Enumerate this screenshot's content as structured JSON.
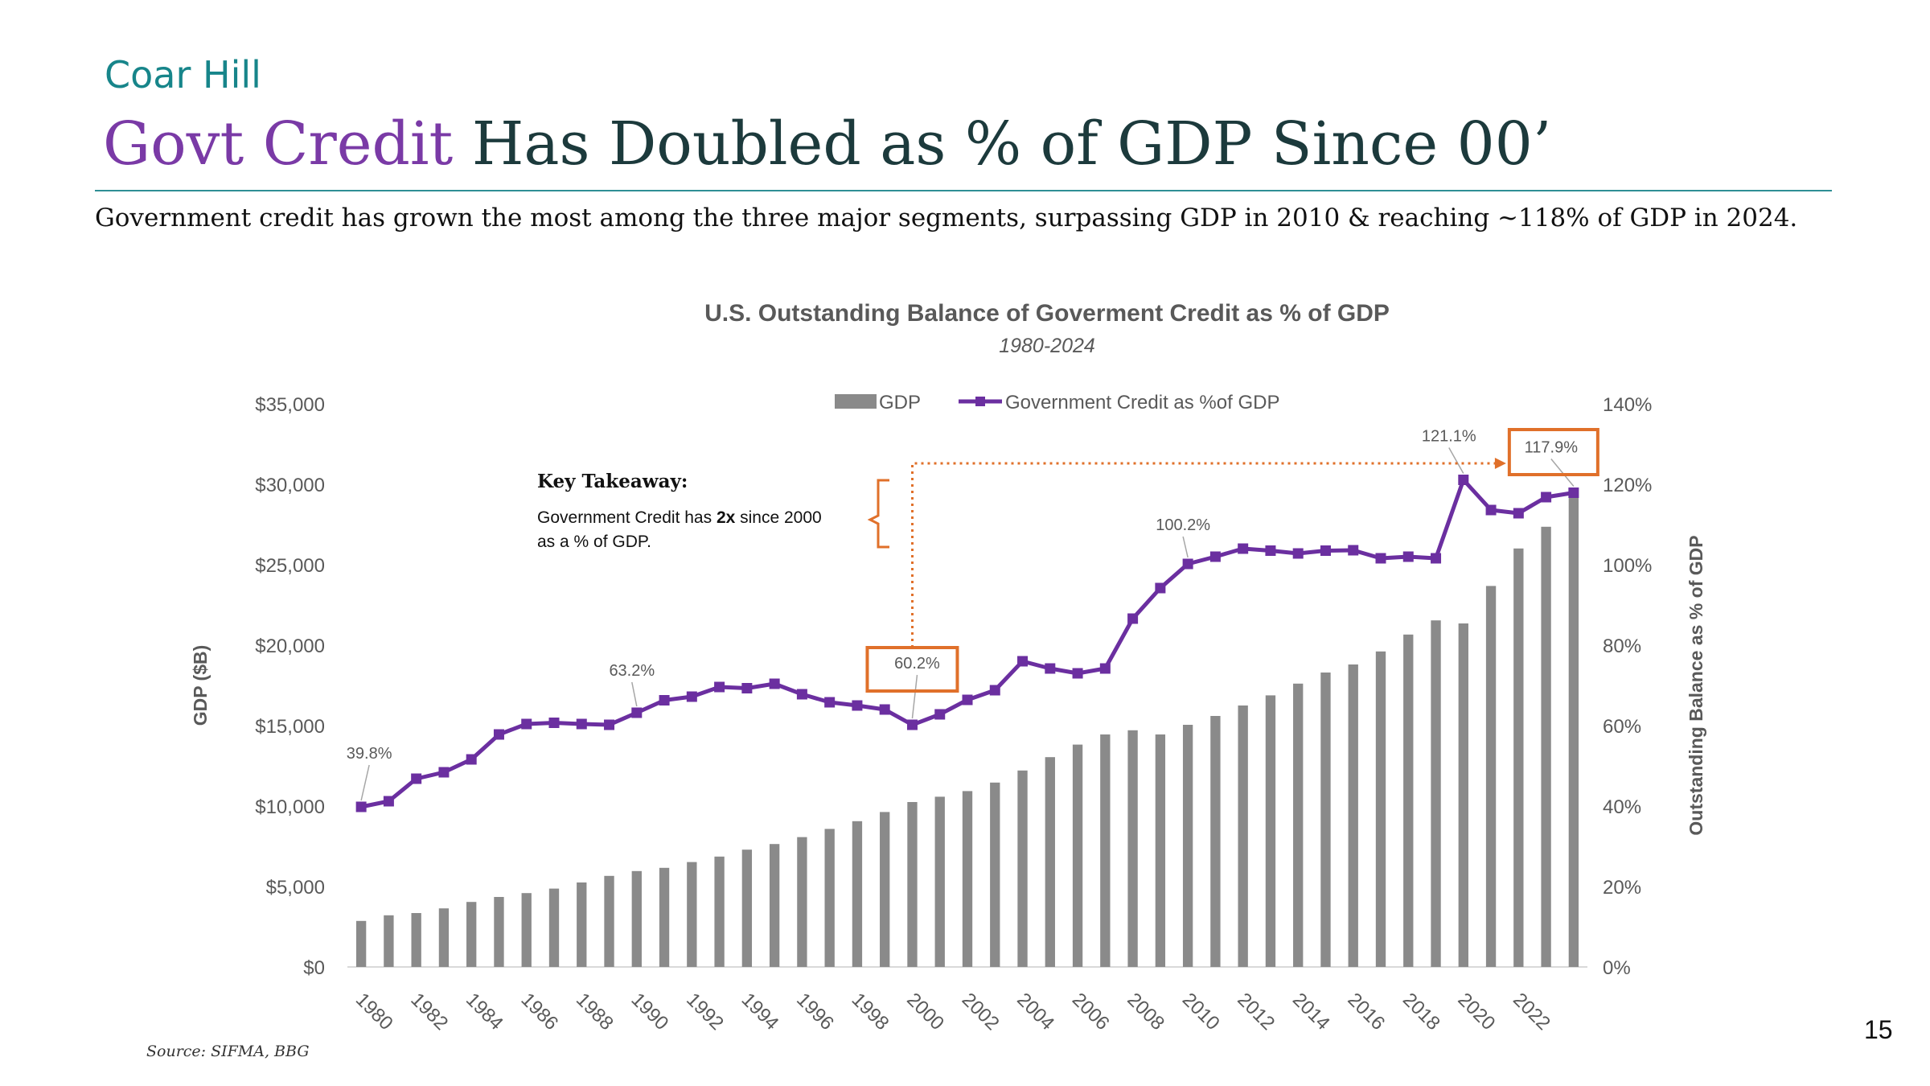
{
  "header": {
    "brand": "Coar Hill",
    "title_accent": "Govt Credit",
    "title_rest": " Has Doubled as % of GDP Since 00’",
    "subtitle": "Government credit has grown the most among the three major segments, surpassing GDP in 2010 & reaching ~118% of GDP in 2024."
  },
  "source": "Source: SIFMA, BBG",
  "page_number": "15",
  "annotation": {
    "heading": "Key Takeaway:",
    "line1_pre": "Government Credit has ",
    "line1_bold": "2x",
    "line1_post": " since 2000",
    "line2": "as a % of GDP."
  },
  "colors": {
    "bar": "#8a8a8a",
    "line": "#6b2fa0",
    "highlight": "#e0702a",
    "axis_text": "#595959"
  },
  "chart_data": {
    "type": "bar+line",
    "title": "U.S. Outstanding Balance of Goverment Credit as % of GDP",
    "subtitle": "1980-2024",
    "ylabel": "GDP ($B)",
    "y2label": "Outstanding Balance as % of GDP",
    "ylim": [
      0,
      35000
    ],
    "y2lim": [
      0,
      140
    ],
    "y_ticks": [
      "$0",
      "$5,000",
      "$10,000",
      "$15,000",
      "$20,000",
      "$25,000",
      "$30,000",
      "$35,000"
    ],
    "y2_ticks": [
      "0%",
      "20%",
      "40%",
      "60%",
      "80%",
      "100%",
      "120%",
      "140%"
    ],
    "legend_position": "top-center",
    "x": [
      1980,
      1981,
      1982,
      1983,
      1984,
      1985,
      1986,
      1987,
      1988,
      1989,
      1990,
      1991,
      1992,
      1993,
      1994,
      1995,
      1996,
      1997,
      1998,
      1999,
      2000,
      2001,
      2002,
      2003,
      2004,
      2005,
      2006,
      2007,
      2008,
      2009,
      2010,
      2011,
      2012,
      2013,
      2014,
      2015,
      2016,
      2017,
      2018,
      2019,
      2020,
      2021,
      2022,
      2023,
      2024
    ],
    "x_tick_labels": [
      "1980",
      "1982",
      "1984",
      "1986",
      "1988",
      "1990",
      "1992",
      "1994",
      "1996",
      "1998",
      "2000",
      "2002",
      "2004",
      "2006",
      "2008",
      "2010",
      "2012",
      "2014",
      "2016",
      "2018",
      "2020",
      "2022"
    ],
    "series": [
      {
        "name": "GDP",
        "type": "bar",
        "axis": "left",
        "values": [
          2860,
          3210,
          3350,
          3640,
          4040,
          4350,
          4590,
          4870,
          5250,
          5660,
          5960,
          6160,
          6520,
          6860,
          7290,
          7640,
          8070,
          8580,
          9060,
          9630,
          10250,
          10580,
          10930,
          11460,
          12210,
          13040,
          13820,
          14450,
          14710,
          14450,
          15050,
          15600,
          16250,
          16880,
          17610,
          18300,
          18800,
          19610,
          20660,
          21540,
          21350,
          23680,
          26010,
          27360,
          29180
        ]
      },
      {
        "name": "Government Credit as %of GDP",
        "type": "line",
        "axis": "right",
        "values": [
          39.8,
          41.2,
          46.8,
          48.4,
          51.6,
          57.8,
          60.4,
          60.7,
          60.4,
          60.2,
          63.2,
          66.3,
          67.2,
          69.6,
          69.3,
          70.4,
          67.8,
          65.8,
          65,
          64,
          60.2,
          62.8,
          66.4,
          68.8,
          76,
          74.2,
          73,
          74.2,
          86.6,
          94.2,
          100.2,
          102,
          104,
          103.5,
          102.8,
          103.5,
          103.6,
          101.6,
          102,
          101.6,
          121.1,
          113.6,
          112.8,
          116.8,
          117.9
        ]
      }
    ],
    "data_labels": [
      {
        "x": 1980,
        "text": "39.8%"
      },
      {
        "x": 1990,
        "text": "63.2%"
      },
      {
        "x": 2000,
        "text": "60.2%"
      },
      {
        "x": 2010,
        "text": "100.2%"
      },
      {
        "x": 2020,
        "text": "121.1%"
      },
      {
        "x": 2024,
        "text": "117.9%"
      }
    ]
  }
}
